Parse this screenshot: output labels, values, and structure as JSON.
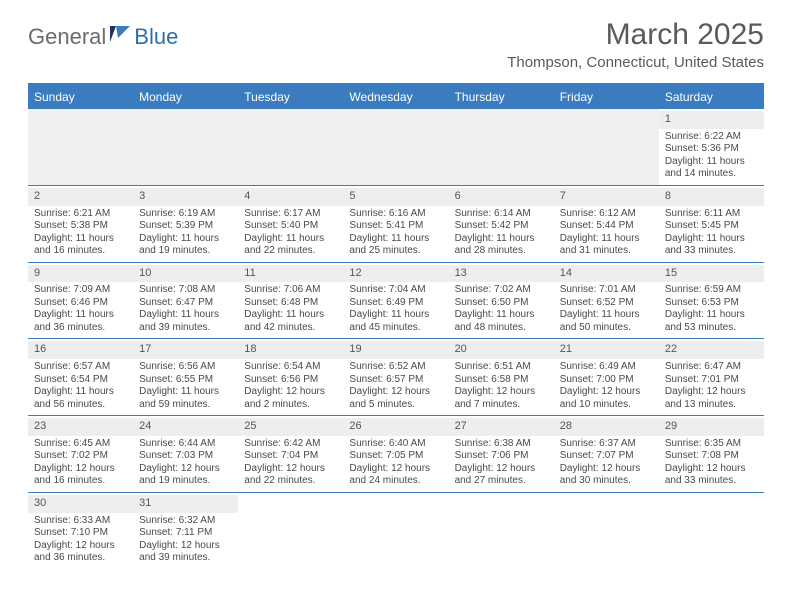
{
  "logo": {
    "text1": "General",
    "text2": "Blue"
  },
  "title": "March 2025",
  "subtitle": "Thompson, Connecticut, United States",
  "dayNames": [
    "Sunday",
    "Monday",
    "Tuesday",
    "Wednesday",
    "Thursday",
    "Friday",
    "Saturday"
  ],
  "colors": {
    "header_bg": "#3b7bbf",
    "header_text": "#ffffff",
    "border": "#3b7bbf",
    "daynum_bg": "#eeeeee",
    "empty_bg": "#f0f0f0",
    "text": "#4a4a4a",
    "title_color": "#5a5a5a"
  },
  "weeks": [
    [
      {
        "empty": true
      },
      {
        "empty": true
      },
      {
        "empty": true
      },
      {
        "empty": true
      },
      {
        "empty": true
      },
      {
        "empty": true
      },
      {
        "n": "1",
        "sr": "Sunrise: 6:22 AM",
        "ss": "Sunset: 5:36 PM",
        "d1": "Daylight: 11 hours",
        "d2": "and 14 minutes."
      }
    ],
    [
      {
        "n": "2",
        "sr": "Sunrise: 6:21 AM",
        "ss": "Sunset: 5:38 PM",
        "d1": "Daylight: 11 hours",
        "d2": "and 16 minutes."
      },
      {
        "n": "3",
        "sr": "Sunrise: 6:19 AM",
        "ss": "Sunset: 5:39 PM",
        "d1": "Daylight: 11 hours",
        "d2": "and 19 minutes."
      },
      {
        "n": "4",
        "sr": "Sunrise: 6:17 AM",
        "ss": "Sunset: 5:40 PM",
        "d1": "Daylight: 11 hours",
        "d2": "and 22 minutes."
      },
      {
        "n": "5",
        "sr": "Sunrise: 6:16 AM",
        "ss": "Sunset: 5:41 PM",
        "d1": "Daylight: 11 hours",
        "d2": "and 25 minutes."
      },
      {
        "n": "6",
        "sr": "Sunrise: 6:14 AM",
        "ss": "Sunset: 5:42 PM",
        "d1": "Daylight: 11 hours",
        "d2": "and 28 minutes."
      },
      {
        "n": "7",
        "sr": "Sunrise: 6:12 AM",
        "ss": "Sunset: 5:44 PM",
        "d1": "Daylight: 11 hours",
        "d2": "and 31 minutes."
      },
      {
        "n": "8",
        "sr": "Sunrise: 6:11 AM",
        "ss": "Sunset: 5:45 PM",
        "d1": "Daylight: 11 hours",
        "d2": "and 33 minutes."
      }
    ],
    [
      {
        "n": "9",
        "sr": "Sunrise: 7:09 AM",
        "ss": "Sunset: 6:46 PM",
        "d1": "Daylight: 11 hours",
        "d2": "and 36 minutes."
      },
      {
        "n": "10",
        "sr": "Sunrise: 7:08 AM",
        "ss": "Sunset: 6:47 PM",
        "d1": "Daylight: 11 hours",
        "d2": "and 39 minutes."
      },
      {
        "n": "11",
        "sr": "Sunrise: 7:06 AM",
        "ss": "Sunset: 6:48 PM",
        "d1": "Daylight: 11 hours",
        "d2": "and 42 minutes."
      },
      {
        "n": "12",
        "sr": "Sunrise: 7:04 AM",
        "ss": "Sunset: 6:49 PM",
        "d1": "Daylight: 11 hours",
        "d2": "and 45 minutes."
      },
      {
        "n": "13",
        "sr": "Sunrise: 7:02 AM",
        "ss": "Sunset: 6:50 PM",
        "d1": "Daylight: 11 hours",
        "d2": "and 48 minutes."
      },
      {
        "n": "14",
        "sr": "Sunrise: 7:01 AM",
        "ss": "Sunset: 6:52 PM",
        "d1": "Daylight: 11 hours",
        "d2": "and 50 minutes."
      },
      {
        "n": "15",
        "sr": "Sunrise: 6:59 AM",
        "ss": "Sunset: 6:53 PM",
        "d1": "Daylight: 11 hours",
        "d2": "and 53 minutes."
      }
    ],
    [
      {
        "n": "16",
        "sr": "Sunrise: 6:57 AM",
        "ss": "Sunset: 6:54 PM",
        "d1": "Daylight: 11 hours",
        "d2": "and 56 minutes."
      },
      {
        "n": "17",
        "sr": "Sunrise: 6:56 AM",
        "ss": "Sunset: 6:55 PM",
        "d1": "Daylight: 11 hours",
        "d2": "and 59 minutes."
      },
      {
        "n": "18",
        "sr": "Sunrise: 6:54 AM",
        "ss": "Sunset: 6:56 PM",
        "d1": "Daylight: 12 hours",
        "d2": "and 2 minutes."
      },
      {
        "n": "19",
        "sr": "Sunrise: 6:52 AM",
        "ss": "Sunset: 6:57 PM",
        "d1": "Daylight: 12 hours",
        "d2": "and 5 minutes."
      },
      {
        "n": "20",
        "sr": "Sunrise: 6:51 AM",
        "ss": "Sunset: 6:58 PM",
        "d1": "Daylight: 12 hours",
        "d2": "and 7 minutes."
      },
      {
        "n": "21",
        "sr": "Sunrise: 6:49 AM",
        "ss": "Sunset: 7:00 PM",
        "d1": "Daylight: 12 hours",
        "d2": "and 10 minutes."
      },
      {
        "n": "22",
        "sr": "Sunrise: 6:47 AM",
        "ss": "Sunset: 7:01 PM",
        "d1": "Daylight: 12 hours",
        "d2": "and 13 minutes."
      }
    ],
    [
      {
        "n": "23",
        "sr": "Sunrise: 6:45 AM",
        "ss": "Sunset: 7:02 PM",
        "d1": "Daylight: 12 hours",
        "d2": "and 16 minutes."
      },
      {
        "n": "24",
        "sr": "Sunrise: 6:44 AM",
        "ss": "Sunset: 7:03 PM",
        "d1": "Daylight: 12 hours",
        "d2": "and 19 minutes."
      },
      {
        "n": "25",
        "sr": "Sunrise: 6:42 AM",
        "ss": "Sunset: 7:04 PM",
        "d1": "Daylight: 12 hours",
        "d2": "and 22 minutes."
      },
      {
        "n": "26",
        "sr": "Sunrise: 6:40 AM",
        "ss": "Sunset: 7:05 PM",
        "d1": "Daylight: 12 hours",
        "d2": "and 24 minutes."
      },
      {
        "n": "27",
        "sr": "Sunrise: 6:38 AM",
        "ss": "Sunset: 7:06 PM",
        "d1": "Daylight: 12 hours",
        "d2": "and 27 minutes."
      },
      {
        "n": "28",
        "sr": "Sunrise: 6:37 AM",
        "ss": "Sunset: 7:07 PM",
        "d1": "Daylight: 12 hours",
        "d2": "and 30 minutes."
      },
      {
        "n": "29",
        "sr": "Sunrise: 6:35 AM",
        "ss": "Sunset: 7:08 PM",
        "d1": "Daylight: 12 hours",
        "d2": "and 33 minutes."
      }
    ],
    [
      {
        "n": "30",
        "sr": "Sunrise: 6:33 AM",
        "ss": "Sunset: 7:10 PM",
        "d1": "Daylight: 12 hours",
        "d2": "and 36 minutes."
      },
      {
        "n": "31",
        "sr": "Sunrise: 6:32 AM",
        "ss": "Sunset: 7:11 PM",
        "d1": "Daylight: 12 hours",
        "d2": "and 39 minutes."
      },
      {
        "blank": true
      },
      {
        "blank": true
      },
      {
        "blank": true
      },
      {
        "blank": true
      },
      {
        "blank": true
      }
    ]
  ]
}
